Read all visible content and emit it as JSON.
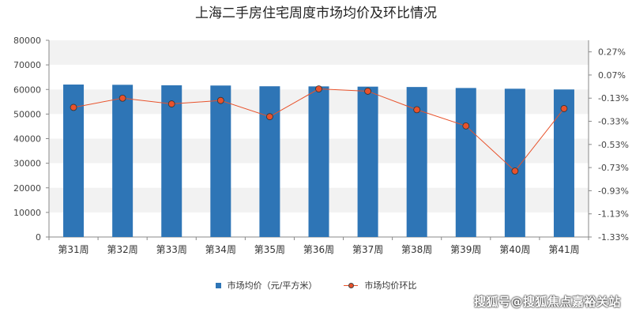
{
  "chart_data": {
    "type": "bar",
    "title": "上海二手房住宅周度市场均价及环比情况",
    "categories": [
      "第31周",
      "第32周",
      "第33周",
      "第34周",
      "第35周",
      "第36周",
      "第37周",
      "第38周",
      "第39周",
      "第40周",
      "第41周"
    ],
    "series": [
      {
        "name": "市场均价（元/平方米）",
        "type": "bar",
        "axis": "left",
        "color": "#2e75b6",
        "values": [
          62000,
          61900,
          61700,
          61600,
          61300,
          61250,
          61150,
          61000,
          60600,
          60300,
          60000
        ]
      },
      {
        "name": "市场均价环比",
        "type": "line",
        "axis": "right",
        "color": "#e8522b",
        "unit": "%",
        "values": [
          -0.21,
          -0.13,
          -0.18,
          -0.15,
          -0.29,
          -0.05,
          -0.07,
          -0.23,
          -0.37,
          -0.76,
          -0.22
        ]
      }
    ],
    "y_left": {
      "range": [
        0,
        80000
      ],
      "ticks": [
        "0",
        "10000",
        "20000",
        "30000",
        "40000",
        "50000",
        "60000",
        "70000",
        "80000"
      ]
    },
    "y_right": {
      "range": [
        -1.33,
        0.37
      ],
      "ticks": [
        "-1.33%",
        "-1.13%",
        "-0.93%",
        "-0.73%",
        "-0.53%",
        "-0.33%",
        "-0.13%",
        "0.07%",
        "0.27%"
      ]
    },
    "grid": "horizontal bands",
    "legend_position": "bottom"
  },
  "watermark": "搜狐号@搜狐焦点嘉裕关站"
}
